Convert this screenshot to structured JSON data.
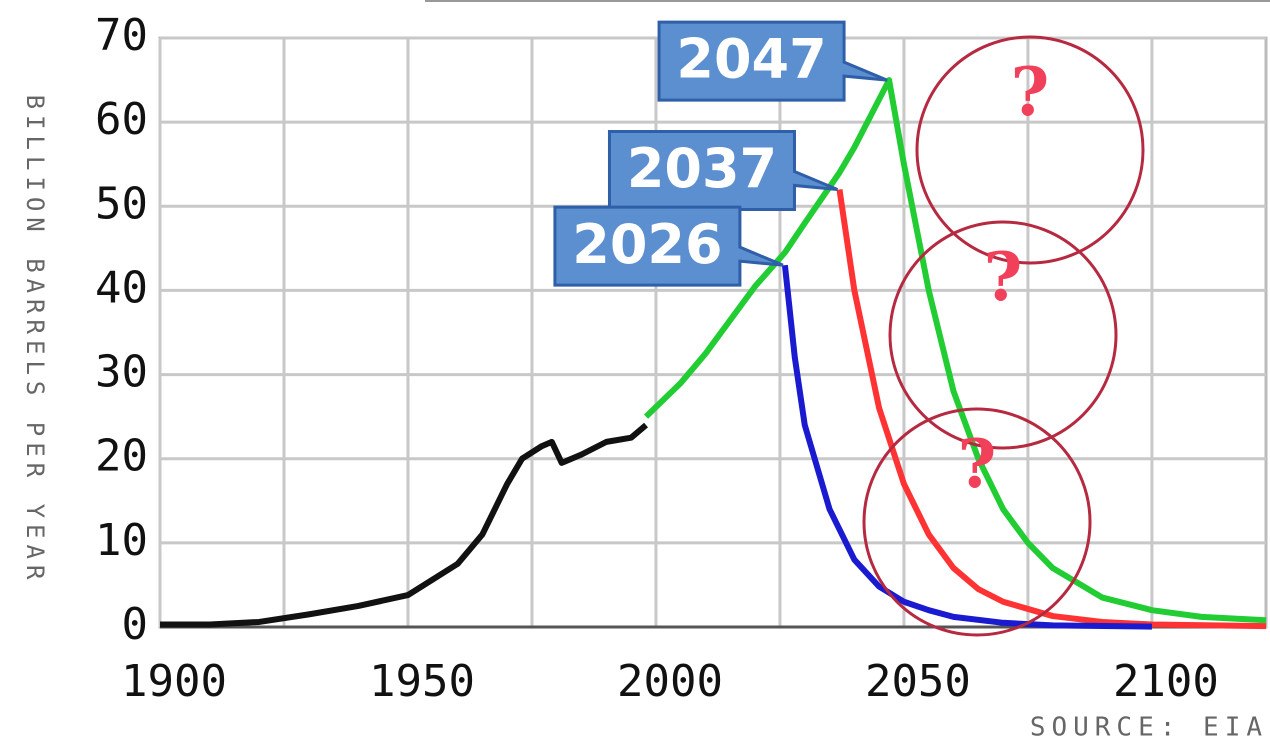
{
  "chart_data": {
    "type": "line",
    "y_label": "BILLION BARRELS PER YEAR",
    "source": "SOURCE: EIA",
    "xlim": [
      1900,
      2123
    ],
    "ylim": [
      0,
      70
    ],
    "xticks": [
      1900,
      1950,
      2000,
      2050,
      2100
    ],
    "xminor": [
      1925,
      1975,
      2025,
      2075
    ],
    "yticks": [
      0,
      10,
      20,
      30,
      40,
      50,
      60,
      70
    ],
    "grid": true,
    "series": [
      {
        "color": "#111111",
        "x": [
          1900,
          1910,
          1920,
          1930,
          1940,
          1950,
          1960,
          1965,
          1970,
          1973,
          1977,
          1979,
          1981,
          1985,
          1990,
          1995,
          1998
        ],
        "values": [
          0.3,
          0.3,
          0.6,
          1.5,
          2.5,
          3.8,
          7.5,
          11,
          17,
          20,
          21.5,
          22,
          19.5,
          20.5,
          22,
          22.5,
          24
        ]
      },
      {
        "color": "#22cc33",
        "x": [
          1998,
          2005,
          2010,
          2015,
          2020,
          2026,
          2030,
          2037,
          2040,
          2047,
          2050,
          2055,
          2060,
          2065,
          2070,
          2075,
          2080,
          2090,
          2100,
          2110,
          2123
        ],
        "values": [
          25,
          29,
          32.5,
          36.5,
          40.5,
          44.5,
          48,
          54,
          57,
          65,
          55,
          40,
          28,
          20,
          14,
          10,
          7,
          3.5,
          2,
          1.2,
          0.8
        ]
      },
      {
        "color": "#ff3333",
        "x": [
          2037,
          2040,
          2045,
          2050,
          2055,
          2060,
          2065,
          2070,
          2080,
          2090,
          2100,
          2123
        ],
        "values": [
          52,
          40,
          26,
          17,
          11,
          7,
          4.5,
          3,
          1.3,
          0.6,
          0.3,
          0.1
        ]
      },
      {
        "color": "#1a1ad0",
        "x": [
          2026,
          2028,
          2030,
          2035,
          2040,
          2045,
          2050,
          2055,
          2060,
          2070,
          2080,
          2100
        ],
        "values": [
          43,
          32,
          24,
          14,
          8,
          4.8,
          3,
          2,
          1.2,
          0.5,
          0.2,
          0.05
        ]
      }
    ],
    "peak_labels": [
      {
        "text": "2047",
        "x": 2047,
        "y": 65
      },
      {
        "text": "2037",
        "x": 2037,
        "y": 52
      },
      {
        "text": "2026",
        "x": 2026,
        "y": 43
      }
    ],
    "question_marks": [
      "?",
      "?",
      "?"
    ]
  }
}
